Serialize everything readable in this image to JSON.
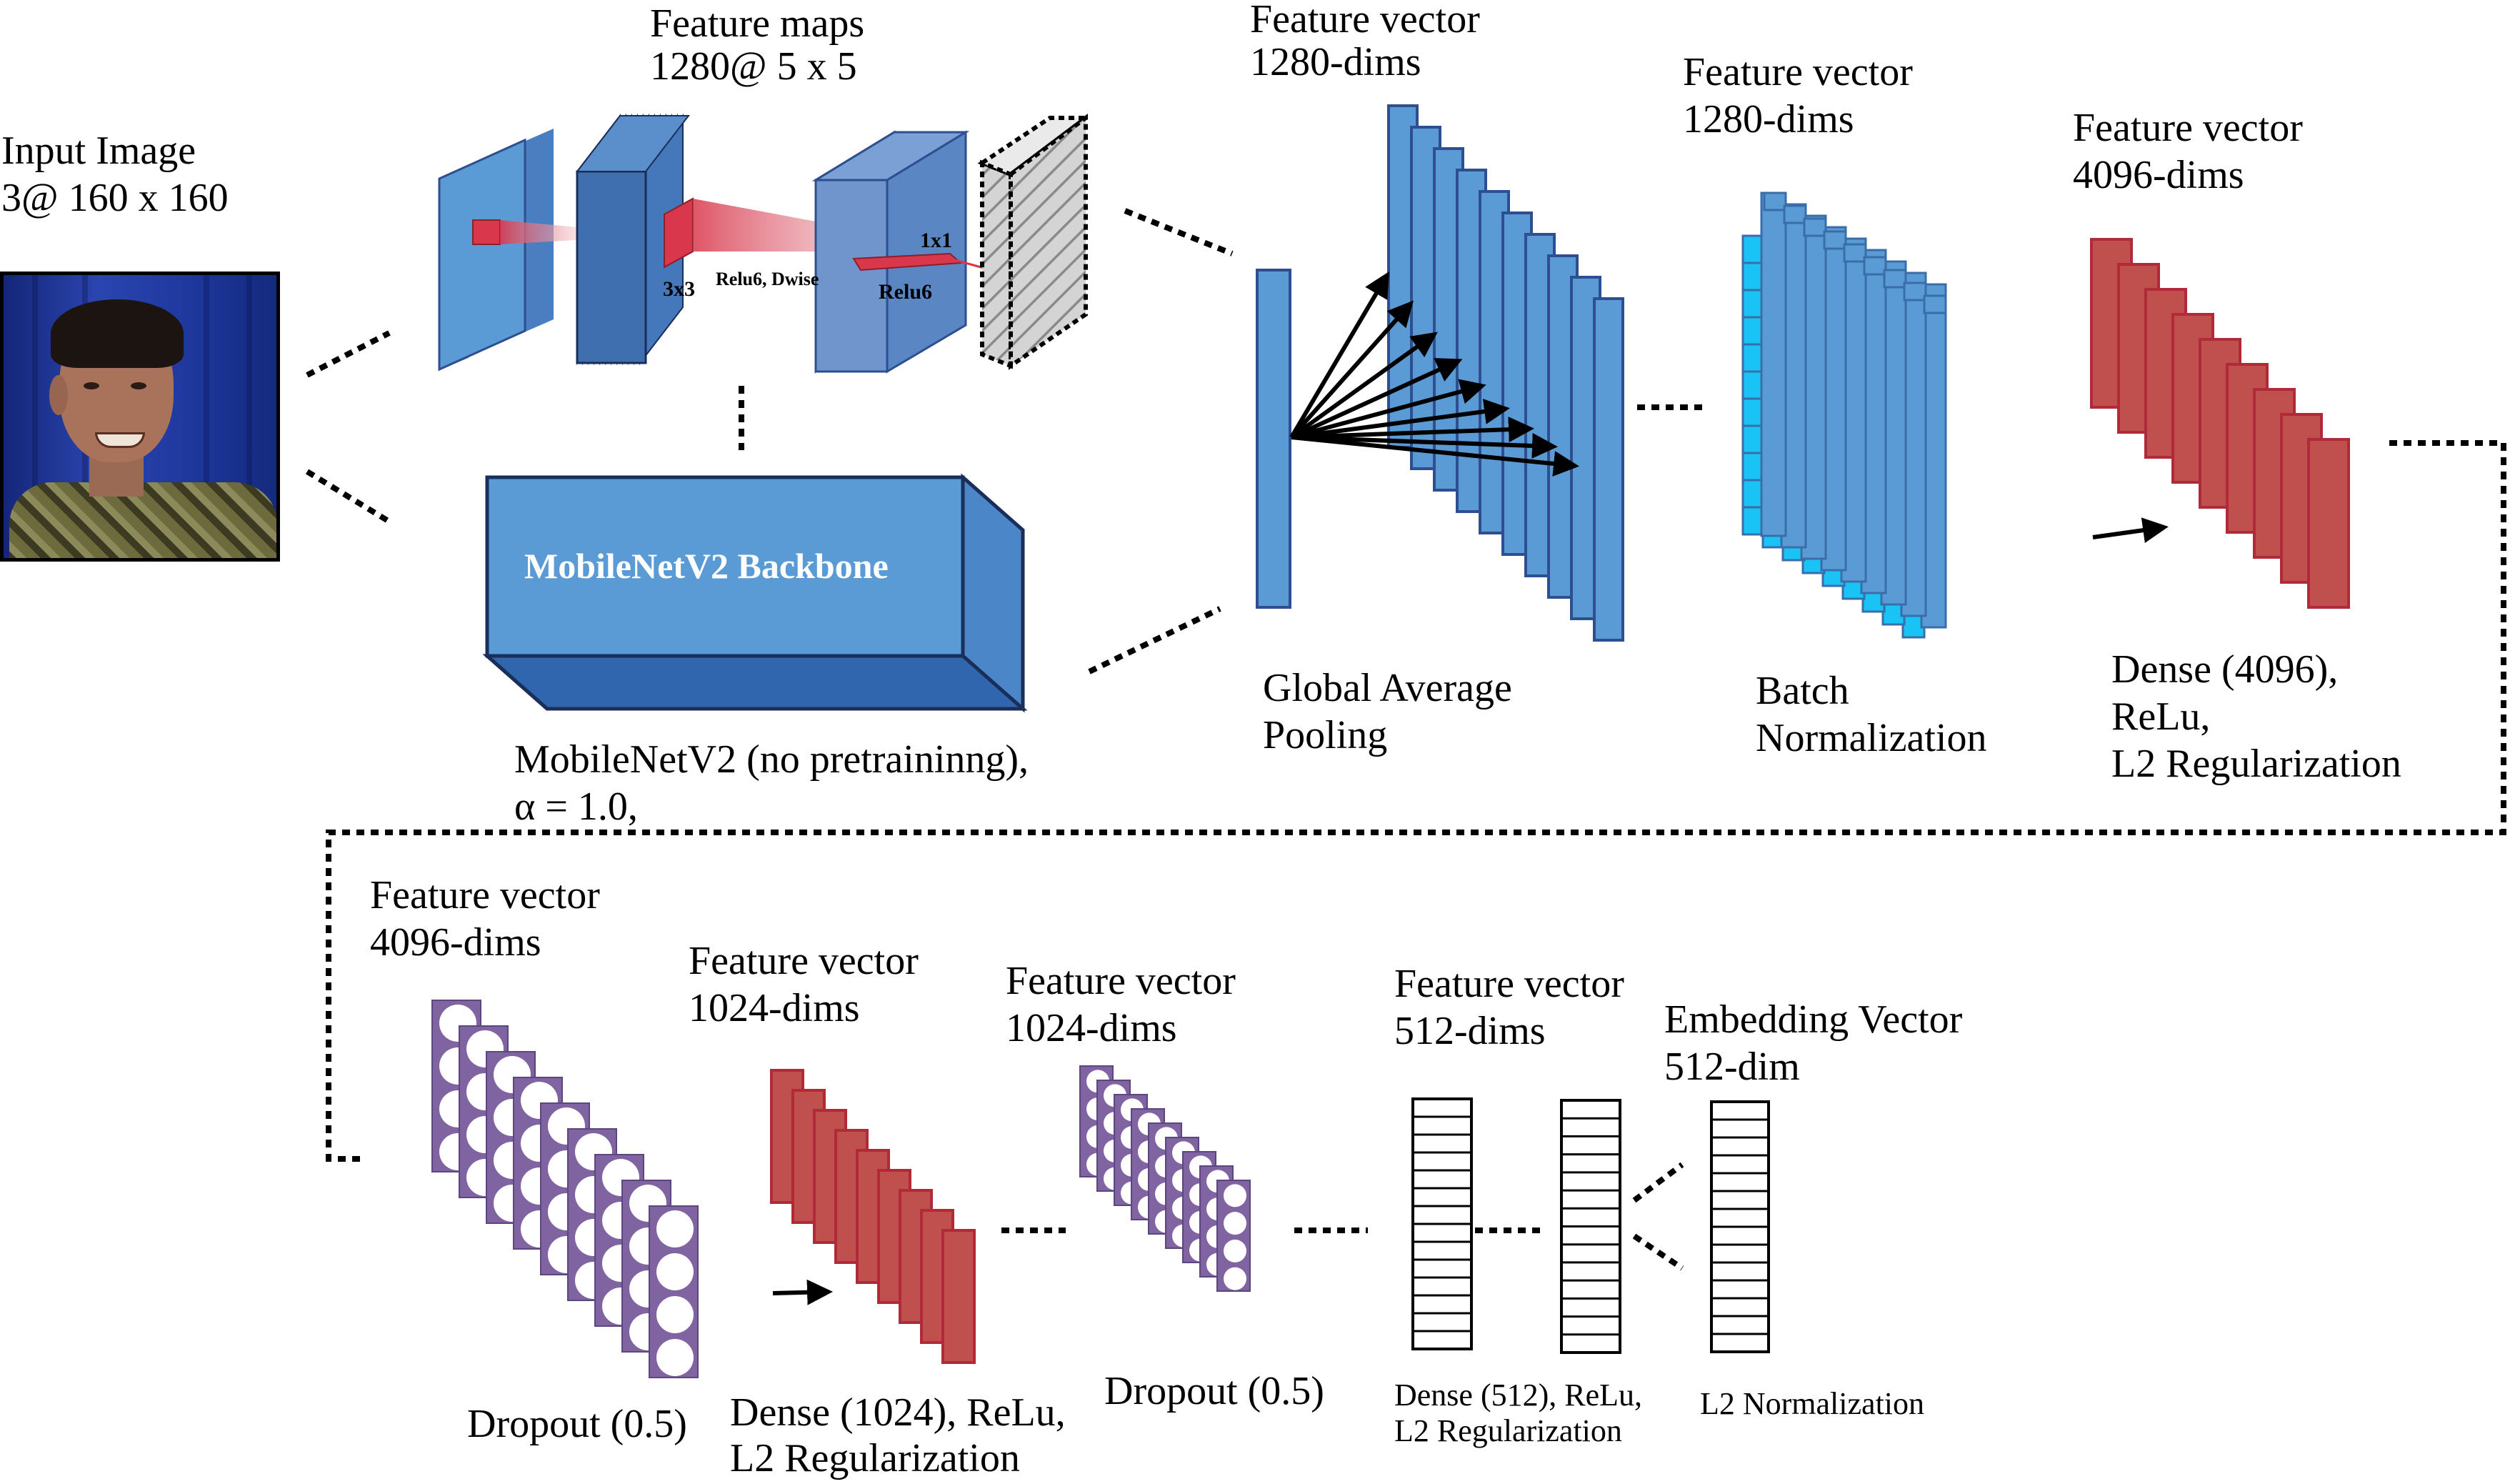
{
  "input": {
    "title": "Input Image",
    "size": "3@ 160 x 160"
  },
  "backbone": {
    "feature_maps_title": "Feature maps",
    "feature_maps_size": "1280@ 5 x 5",
    "label_3x3": "3x3",
    "label_relu6_dwise": "Relu6, Dwise",
    "label_1x1": "1x1",
    "label_relu6": "Relu6",
    "box_label": "MobileNetV2 Backbone",
    "caption_line1": "MobileNetV2 (no pretraininng),",
    "caption_line2": "α = 1.0,"
  },
  "stages": {
    "gap": {
      "title": "Feature vector",
      "dims": "1280-dims",
      "caption_line1": "Global Average",
      "caption_line2": "Pooling"
    },
    "bn": {
      "title": "Feature vector",
      "dims": "1280-dims",
      "caption_line1": "Batch",
      "caption_line2": "Normalization"
    },
    "dense4096": {
      "title": "Feature vector",
      "dims": "4096-dims",
      "caption_line1": "Dense (4096),",
      "caption_line2": "ReLu,",
      "caption_line3": "L2 Regularization"
    },
    "dropout1": {
      "title": "Feature vector",
      "dims": "4096-dims",
      "caption": "Dropout (0.5)"
    },
    "dense1024": {
      "title": "Feature vector",
      "dims": "1024-dims",
      "caption_line1": "Dense (1024), ReLu,",
      "caption_line2": "L2 Regularization"
    },
    "dropout2": {
      "title": "Feature vector",
      "dims": "1024-dims",
      "caption": "Dropout (0.5)"
    },
    "dense512": {
      "title": "Feature vector",
      "dims": "512-dims",
      "caption_line1": "Dense (512), ReLu,",
      "caption_line2": "L2 Regularization"
    },
    "embedding": {
      "title": "Embedding Vector",
      "dims": "512-dim",
      "caption": "L2 Normalization"
    }
  },
  "colors": {
    "blue": "#5b9bd5",
    "blue_dark": "#3a6ea8",
    "navy": "#2e4f8f",
    "cyan": "#19c3f5",
    "red": "#c0504d",
    "red_dark": "#8e2d2a",
    "purple": "#8064a2",
    "kernel_red": "#d9374b"
  }
}
